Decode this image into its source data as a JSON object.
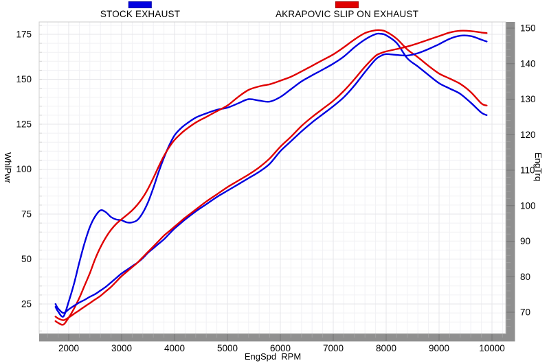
{
  "legend": {
    "items": [
      {
        "id": "stock",
        "label": "STOCK EXHAUST",
        "color": "#0000e0"
      },
      {
        "id": "akrapovic",
        "label": "AKRAPOVIC SLIP ON EXHAUST",
        "color": "#e00000"
      }
    ]
  },
  "axes": {
    "x": {
      "label": "EngSpd  RPM",
      "ticks": [
        2000,
        3000,
        4000,
        5000,
        6000,
        7000,
        8000,
        9000,
        10000
      ]
    },
    "left": {
      "label": "WhlPwr",
      "ticks": [
        175,
        150,
        125,
        100,
        75,
        50,
        25
      ]
    },
    "right": {
      "label": "EngTrq",
      "ticks": [
        150,
        140,
        130,
        120,
        110,
        100,
        90,
        80,
        70
      ]
    }
  },
  "colors": {
    "stock": "#0000e0",
    "akrapovic": "#e00000",
    "grid_major": "#e5e5e9",
    "grid_minor": "#f1f1f4",
    "frame": "#cccccc",
    "bar": "#8f8f8f",
    "bar_notch_major": "#757575",
    "bar_notch_minor": "#a0a0a0"
  },
  "chart_data": {
    "type": "line",
    "title": "",
    "xlabel": "EngSpd RPM",
    "left_ylabel": "WhlPwr",
    "right_ylabel": "EngTrq",
    "x_range_visible": [
      1440,
      10260
    ],
    "left_range_visible": [
      8.5,
      182
    ],
    "right_range_visible": [
      64,
      151.8
    ],
    "grid": true,
    "legend_position": "top",
    "x_rpm": [
      1750,
      1800,
      1900,
      2000,
      2100,
      2200,
      2300,
      2400,
      2500,
      2600,
      2700,
      2800,
      2900,
      3000,
      3100,
      3200,
      3300,
      3400,
      3500,
      3600,
      3700,
      3800,
      3900,
      4000,
      4100,
      4200,
      4400,
      4600,
      4800,
      5000,
      5200,
      5400,
      5600,
      5800,
      6000,
      6200,
      6400,
      6600,
      6800,
      7000,
      7200,
      7400,
      7600,
      7800,
      7900,
      8000,
      8200,
      8400,
      8600,
      8800,
      9000,
      9200,
      9400,
      9600,
      9800,
      9900
    ],
    "series": [
      {
        "id": "stock-whlpwr",
        "name": "STOCK EXHAUST WhlPwr",
        "axis": "left",
        "color": "#0000e0",
        "values": [
          25,
          22.5,
          20,
          22,
          24,
          25.8,
          27.3,
          29,
          30.5,
          32.5,
          34.5,
          37,
          39.5,
          42,
          44,
          46,
          48,
          50.5,
          53.5,
          56,
          58.5,
          61,
          64,
          67,
          69.5,
          72,
          76.5,
          80.5,
          84.5,
          88,
          91.5,
          95,
          98.5,
          103,
          110,
          115.5,
          121,
          126,
          130.5,
          135,
          140,
          146.5,
          154,
          161,
          163,
          164,
          163.5,
          163.2,
          164.5,
          166.8,
          169.5,
          172.5,
          174.2,
          174,
          172,
          171
        ]
      },
      {
        "id": "akrapovic-whlpwr",
        "name": "AKRAPOVIC SLIP ON EXHAUST WhlPwr",
        "axis": "left",
        "color": "#e00000",
        "values": [
          18,
          17,
          16,
          17.5,
          19.5,
          21.5,
          23.5,
          25.5,
          27.5,
          29.5,
          32,
          34.5,
          37.5,
          40.5,
          43,
          45.5,
          48,
          51,
          54,
          57,
          60,
          63,
          65.5,
          68,
          70.5,
          73,
          77.5,
          82,
          86,
          90,
          93.5,
          97,
          101,
          106,
          112.5,
          118,
          124,
          129,
          133.5,
          138,
          143.5,
          150,
          157,
          163,
          164.5,
          165.5,
          166.8,
          168.2,
          170,
          172,
          174,
          176,
          177,
          176.8,
          176,
          175.7
        ]
      },
      {
        "id": "stock-engtrq",
        "name": "STOCK EXHAUST EngTrq",
        "axis": "right",
        "color": "#0000e0",
        "values": [
          71.5,
          70.2,
          68.8,
          73,
          78,
          84,
          89.5,
          94,
          97,
          98.7,
          98.2,
          96.8,
          96.1,
          95.9,
          95.3,
          95.3,
          96,
          98,
          101,
          105,
          109.5,
          113.5,
          117,
          119.8,
          121.5,
          122.8,
          124.8,
          126,
          127,
          127.6,
          128.8,
          130,
          129.6,
          129.3,
          130.6,
          132.8,
          135,
          136.7,
          138.3,
          140,
          142,
          144.6,
          146.8,
          148.3,
          148.4,
          148,
          145.8,
          141.5,
          139.2,
          136.8,
          134.5,
          133,
          131.5,
          129,
          126.2,
          125.5
        ]
      },
      {
        "id": "akrapovic-engtrq",
        "name": "AKRAPOVIC SLIP ON EXHAUST EngTrq",
        "axis": "right",
        "color": "#e00000",
        "values": [
          67.5,
          67,
          66.5,
          68.5,
          71,
          74,
          77.5,
          81,
          85,
          88.3,
          91,
          93.2,
          94.9,
          96.2,
          97.4,
          98.7,
          100.3,
          102.3,
          104.8,
          107.8,
          111,
          114,
          116.5,
          118.5,
          120,
          121.3,
          123.4,
          125,
          126.6,
          128.2,
          130.6,
          132.6,
          133.6,
          134.2,
          135.2,
          136.3,
          137.8,
          139.4,
          141,
          142.6,
          144.6,
          146.8,
          148.6,
          149.4,
          149.4,
          149,
          147,
          144,
          141.8,
          139.4,
          137.2,
          135.8,
          134.3,
          132,
          128.8,
          128.2
        ]
      }
    ]
  }
}
